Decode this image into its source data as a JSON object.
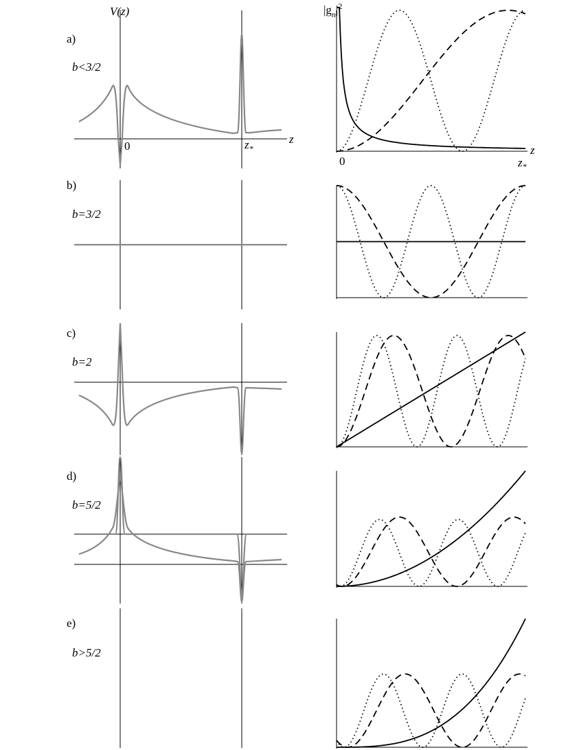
{
  "left_axis_label": "V(z)",
  "right_axis_label": {
    "pre": "|g",
    "sub": "n",
    "mid": "|",
    "sup": "2"
  },
  "axis_labels": {
    "z": "z",
    "zero": "0",
    "z_star": {
      "base": "z",
      "sub": "*"
    }
  },
  "panels": [
    {
      "label": "a)",
      "condition": "b<3/2"
    },
    {
      "label": "b)",
      "condition": "b=3/2"
    },
    {
      "label": "c)",
      "condition": "b=2"
    },
    {
      "label": "d)",
      "condition": "b=5/2"
    },
    {
      "label": "e)",
      "condition": "b>5/2"
    }
  ]
}
